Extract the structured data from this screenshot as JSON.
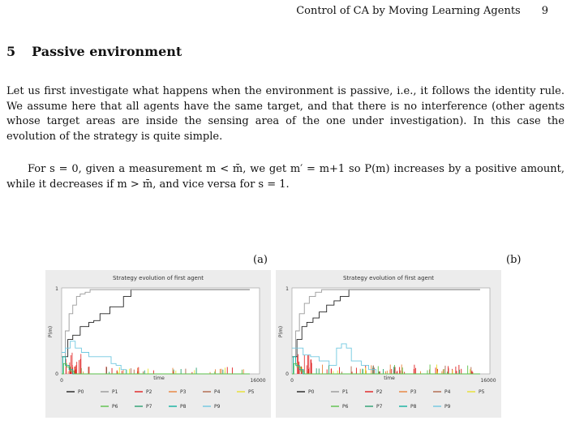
{
  "header": {
    "title": "Control of CA by Moving Learning Agents",
    "page_number": "9"
  },
  "section": {
    "number": "5",
    "title": "Passive environment"
  },
  "paragraphs": {
    "p1": "Let us first investigate what happens when the environment is passive, i.e., it follows the identity rule. We assume here that all agents have the same target, and that there is no interference (other agents whose target areas are inside the sensing area of the one under investigation). In this case the evolution of the strategy is quite simple.",
    "p2": "For s = 0, given a measurement m < m̄, we get m′ = m+1 so P(m) increases by a positive amount, while it decreases if m > m̄, and vice versa for s = 1."
  },
  "figure": {
    "label_a": "(a)",
    "label_b": "(b)"
  },
  "series_colors": {
    "P0": "#222222",
    "P1": "#9a9a9a",
    "P2": "#e02020",
    "P3": "#e8833a",
    "P4": "#b0664a",
    "P5": "#e8e030",
    "P6": "#5ac04a",
    "P7": "#2aa070",
    "P8": "#10b0a0",
    "P9": "#70c8e0"
  },
  "chart_data": [
    {
      "type": "line",
      "title": "Strategy evolution of first agent",
      "xlabel": "time",
      "ylabel": "P(m)",
      "xlim": [
        0,
        16000
      ],
      "ylim": [
        0,
        1
      ],
      "x_ticks": [
        "0",
        "16000"
      ],
      "y_ticks": [
        "0",
        "1"
      ],
      "legend": [
        "P0",
        "P1",
        "P2",
        "P3",
        "P4",
        "P5",
        "P6",
        "P7",
        "P8",
        "P9"
      ],
      "legend_position": "bottom",
      "series": [
        {
          "name": "P0",
          "x": [
            0,
            500,
            900,
            1500,
            2200,
            2600,
            3100,
            3900,
            5000,
            5600,
            15200
          ],
          "y": [
            0.2,
            0.4,
            0.45,
            0.55,
            0.6,
            0.62,
            0.7,
            0.78,
            0.9,
            0.98,
            0.98
          ]
        },
        {
          "name": "P1",
          "x": [
            0,
            300,
            600,
            900,
            1200,
            1500,
            1900,
            2300,
            15200
          ],
          "y": [
            0.2,
            0.5,
            0.7,
            0.8,
            0.9,
            0.93,
            0.95,
            0.98,
            0.98
          ]
        },
        {
          "name": "P9",
          "x": [
            0,
            300,
            700,
            1100,
            1600,
            2200,
            3200,
            4000,
            4400,
            4800,
            5200,
            15200
          ],
          "y": [
            0.25,
            0.3,
            0.38,
            0.3,
            0.25,
            0.2,
            0.2,
            0.12,
            0.1,
            0.05,
            0,
            0
          ]
        },
        {
          "name": "P8",
          "x": [
            0,
            100,
            300,
            600,
            900,
            15200
          ],
          "y": [
            0,
            0.2,
            0.1,
            0.05,
            0,
            0
          ]
        },
        {
          "name": "P6",
          "x": [
            0,
            150,
            400,
            700,
            1000,
            15200
          ],
          "y": [
            0,
            0.12,
            0.08,
            0.03,
            0,
            0
          ]
        }
      ]
    },
    {
      "type": "line",
      "title": "Strategy evolution of first agent",
      "xlabel": "time",
      "ylabel": "P(m)",
      "xlim": [
        0,
        16000
      ],
      "ylim": [
        0,
        1
      ],
      "x_ticks": [
        "0",
        "16000"
      ],
      "y_ticks": [
        "0",
        "1"
      ],
      "legend": [
        "P0",
        "P1",
        "P2",
        "P3",
        "P4",
        "P5",
        "P6",
        "P7",
        "P8",
        "P9"
      ],
      "legend_position": "bottom",
      "series": [
        {
          "name": "P0",
          "x": [
            0,
            400,
            800,
            1200,
            1700,
            2200,
            2800,
            3400,
            3900,
            4600,
            15200
          ],
          "y": [
            0.2,
            0.4,
            0.55,
            0.6,
            0.65,
            0.72,
            0.8,
            0.85,
            0.9,
            0.98,
            0.98
          ]
        },
        {
          "name": "P1",
          "x": [
            0,
            300,
            600,
            1000,
            1400,
            1900,
            2400,
            15200
          ],
          "y": [
            0.2,
            0.5,
            0.7,
            0.82,
            0.9,
            0.95,
            0.98,
            0.98
          ]
        },
        {
          "name": "P9",
          "x": [
            0,
            400,
            900,
            1500,
            2200,
            3000,
            3600,
            4000,
            4400,
            4800,
            5600,
            6200,
            6800,
            15200
          ],
          "y": [
            0.3,
            0.3,
            0.22,
            0.2,
            0.15,
            0.1,
            0.3,
            0.35,
            0.3,
            0.15,
            0.1,
            0.05,
            0,
            0
          ]
        },
        {
          "name": "P8",
          "x": [
            0,
            100,
            300,
            600,
            900,
            15200
          ],
          "y": [
            0,
            0.2,
            0.1,
            0.05,
            0,
            0
          ]
        },
        {
          "name": "P6",
          "x": [
            0,
            150,
            400,
            700,
            1000,
            15200
          ],
          "y": [
            0,
            0.12,
            0.08,
            0.03,
            0,
            0
          ]
        }
      ]
    }
  ]
}
